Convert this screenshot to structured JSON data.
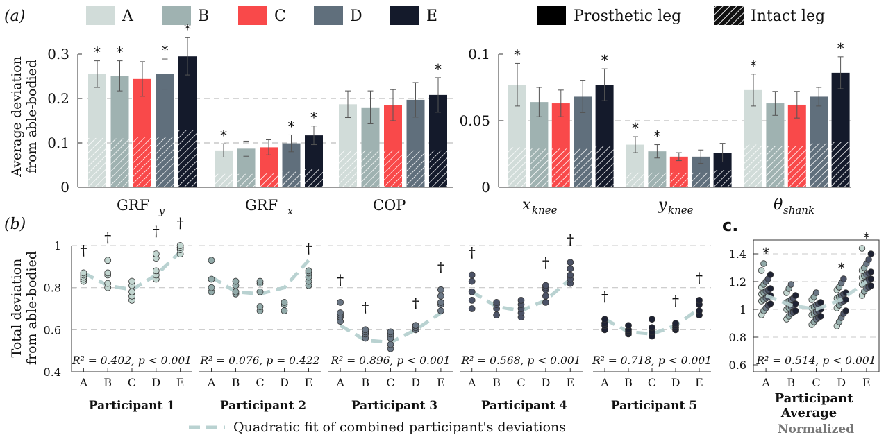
{
  "panel_labels": {
    "a": "(a)",
    "b": "(b)",
    "c": "c."
  },
  "legend": {
    "conditions": [
      {
        "label": "A",
        "color": "#d1dcd9"
      },
      {
        "label": "B",
        "color": "#9fb2b1"
      },
      {
        "label": "C",
        "color": "#f9494a"
      },
      {
        "label": "D",
        "color": "#606f7c"
      },
      {
        "label": "E",
        "color": "#141a2b"
      }
    ],
    "prosthetic_label": "Prosthetic leg",
    "intact_label": "Intact leg"
  },
  "bottom_legend": {
    "label": "Quadratic fit of combined participant's deviations",
    "color": "#b9d2d1"
  },
  "participants": [
    "Participant 1",
    "Participant 2",
    "Participant 3",
    "Participant 4",
    "Participant 5"
  ],
  "participant_average": {
    "line1": "Participant",
    "line2": "Average",
    "normalized": "Normalized"
  },
  "star": "*",
  "dagger": "†",
  "chart_data": [
    {
      "type": "bar",
      "panel": "a-left",
      "ylabel": [
        "Average deviation",
        "from able-bodied"
      ],
      "ylim": [
        0,
        0.3
      ],
      "yticks": [
        "0",
        "0.1",
        "0.2",
        "0.3"
      ],
      "gridlines": [
        0.1,
        0.2
      ],
      "groups": [
        "GRF",
        "GRF",
        "COP"
      ],
      "group_subscripts": [
        "y",
        "x",
        ""
      ],
      "series_names": [
        "A",
        "B",
        "C",
        "D",
        "E"
      ],
      "stacked_parts": [
        "Intact leg",
        "Prosthetic leg"
      ],
      "totals": [
        [
          0.255,
          0.251,
          0.244,
          0.255,
          0.295
        ],
        [
          0.083,
          0.087,
          0.09,
          0.099,
          0.117
        ],
        [
          0.187,
          0.18,
          0.185,
          0.197,
          0.208
        ]
      ],
      "errors": [
        [
          0.03,
          0.034,
          0.039,
          0.034,
          0.042
        ],
        [
          0.015,
          0.017,
          0.017,
          0.019,
          0.021
        ],
        [
          0.03,
          0.037,
          0.035,
          0.039,
          0.039
        ]
      ],
      "intact": [
        [
          0.111,
          0.11,
          0.113,
          0.113,
          0.128
        ],
        [
          0.03,
          0.03,
          0.031,
          0.035,
          0.042
        ],
        [
          0.083,
          0.083,
          0.083,
          0.083,
          0.083
        ]
      ],
      "significant": [
        [
          true,
          true,
          false,
          true,
          true
        ],
        [
          true,
          false,
          false,
          true,
          true
        ],
        [
          false,
          false,
          false,
          false,
          true
        ]
      ]
    },
    {
      "type": "bar",
      "panel": "a-right",
      "ylim": [
        0,
        0.1
      ],
      "yticks": [
        "0",
        "0.05",
        "0.1"
      ],
      "gridlines": [
        0.05
      ],
      "groups": [
        "x",
        "y",
        "θ"
      ],
      "group_subscripts": [
        "knee",
        "knee",
        "shank"
      ],
      "series_names": [
        "A",
        "B",
        "C",
        "D",
        "E"
      ],
      "stacked_parts": [
        "Intact leg",
        "Prosthetic leg"
      ],
      "totals": [
        [
          0.077,
          0.064,
          0.063,
          0.068,
          0.077
        ],
        [
          0.032,
          0.027,
          0.023,
          0.023,
          0.026
        ],
        [
          0.073,
          0.063,
          0.062,
          0.068,
          0.086
        ]
      ],
      "errors": [
        [
          0.016,
          0.011,
          0.01,
          0.012,
          0.012
        ],
        [
          0.006,
          0.005,
          0.003,
          0.005,
          0.007
        ],
        [
          0.012,
          0.009,
          0.01,
          0.007,
          0.012
        ]
      ],
      "intact": [
        [
          0.03,
          0.029,
          0.029,
          0.029,
          0.031
        ],
        [
          0.011,
          0.011,
          0.011,
          0.011,
          0.013
        ],
        [
          0.032,
          0.031,
          0.031,
          0.033,
          0.034
        ]
      ],
      "significant": [
        [
          true,
          false,
          false,
          false,
          true
        ],
        [
          true,
          true,
          false,
          false,
          false
        ],
        [
          true,
          false,
          false,
          false,
          true
        ]
      ]
    },
    {
      "type": "scatter",
      "panel": "b",
      "ylabel": [
        "Total deviation",
        "from able-bodied"
      ],
      "ylim": [
        0.4,
        1.0
      ],
      "yticks": [
        "0.4",
        "0.6",
        "0.8",
        "1"
      ],
      "gridlines": [
        0.6,
        0.8,
        1.0
      ],
      "categories": [
        "A",
        "B",
        "C",
        "D",
        "E"
      ],
      "participants": [
        {
          "points": [
            [
              0.83,
              0.84,
              0.85,
              0.86,
              0.87
            ],
            [
              0.8,
              0.82,
              0.86,
              0.87,
              0.93
            ],
            [
              0.74,
              0.76,
              0.78,
              0.81,
              0.83
            ],
            [
              0.84,
              0.86,
              0.88,
              0.94,
              0.96
            ],
            [
              0.96,
              0.98,
              0.99,
              0.99,
              1.0
            ]
          ],
          "fit": [
            0.87,
            0.81,
            0.79,
            0.86,
            0.97
          ],
          "fill": "#c2d6d0",
          "daggers": [
            true,
            true,
            false,
            true,
            true
          ],
          "stats": "R² = 0.402,  p < 0.001"
        },
        {
          "points": [
            [
              0.78,
              0.8,
              0.84,
              0.93
            ],
            [
              0.77,
              0.78,
              0.81,
              0.83
            ],
            [
              0.69,
              0.71,
              0.78,
              0.82,
              0.83
            ],
            [
              0.69,
              0.72,
              0.73
            ],
            [
              0.81,
              0.83,
              0.85,
              0.87,
              0.88
            ]
          ],
          "fit": [
            0.85,
            0.78,
            0.77,
            0.8,
            0.93
          ],
          "fill": "#92aaa9",
          "daggers": [
            false,
            false,
            false,
            false,
            true
          ],
          "stats": "R² = 0.076,  p = 0.422"
        },
        {
          "points": [
            [
              0.64,
              0.66,
              0.67,
              0.68,
              0.73
            ],
            [
              0.56,
              0.58,
              0.59,
              0.6
            ],
            [
              0.51,
              0.53,
              0.56,
              0.58,
              0.59
            ],
            [
              0.6,
              0.61,
              0.62,
              0.62
            ],
            [
              0.69,
              0.72,
              0.73,
              0.76,
              0.79
            ]
          ],
          "fit": [
            0.62,
            0.55,
            0.54,
            0.6,
            0.68
          ],
          "fill": "#6a7684",
          "daggers": [
            true,
            true,
            false,
            true,
            true
          ],
          "stats": "R² = 0.896,  p < 0.001"
        },
        {
          "points": [
            [
              0.7,
              0.74,
              0.78,
              0.83,
              0.86
            ],
            [
              0.67,
              0.7,
              0.72,
              0.73
            ],
            [
              0.66,
              0.68,
              0.7,
              0.72,
              0.74
            ],
            [
              0.73,
              0.76,
              0.79,
              0.8,
              0.81
            ],
            [
              0.82,
              0.84,
              0.86,
              0.89,
              0.92
            ]
          ],
          "fit": [
            0.78,
            0.71,
            0.69,
            0.74,
            0.84
          ],
          "fill": "#4b5266",
          "daggers": [
            true,
            false,
            false,
            true,
            true
          ],
          "stats": "R² = 0.568,  p < 0.001"
        },
        {
          "points": [
            [
              0.6,
              0.62,
              0.63,
              0.65
            ],
            [
              0.58,
              0.59,
              0.6,
              0.62
            ],
            [
              0.57,
              0.59,
              0.61,
              0.65
            ],
            [
              0.6,
              0.61,
              0.62,
              0.63
            ],
            [
              0.67,
              0.69,
              0.72,
              0.74
            ]
          ],
          "fit": [
            0.65,
            0.59,
            0.58,
            0.62,
            0.7
          ],
          "fill": "#1e2233",
          "daggers": [
            true,
            false,
            false,
            true,
            true
          ],
          "stats": "R² = 0.718,  p < 0.001"
        }
      ]
    },
    {
      "type": "scatter",
      "panel": "c",
      "ylim": [
        0.55,
        1.5
      ],
      "yticks": [
        "0.6",
        "0.8",
        "1",
        "1.2",
        "1.4"
      ],
      "gridlines": [
        0.8,
        1.0,
        1.2,
        1.4
      ],
      "categories": [
        "A",
        "B",
        "C",
        "D",
        "E"
      ],
      "fit": [
        1.1,
        1.03,
        1.0,
        1.07,
        1.2
      ],
      "significant": [
        true,
        false,
        false,
        true,
        true
      ],
      "stats": "R² = 0.514,  p < 0.001",
      "points": [
        [
          0.96,
          0.99,
          1.01,
          1.03,
          1.04,
          1.06,
          1.07,
          1.08,
          1.09,
          1.1,
          1.11,
          1.12,
          1.13,
          1.14,
          1.15,
          1.16,
          1.18,
          1.2,
          1.22,
          1.25,
          1.28,
          1.33
        ],
        [
          0.93,
          0.95,
          0.97,
          0.98,
          0.99,
          1.0,
          1.01,
          1.02,
          1.03,
          1.04,
          1.05,
          1.06,
          1.07,
          1.08,
          1.1,
          1.12,
          1.15,
          1.18
        ],
        [
          0.89,
          0.91,
          0.93,
          0.94,
          0.95,
          0.96,
          0.97,
          0.98,
          0.99,
          1.0,
          1.01,
          1.02,
          1.03,
          1.04,
          1.05,
          1.07,
          1.09,
          1.12
        ],
        [
          0.88,
          0.91,
          0.94,
          0.97,
          0.99,
          1.01,
          1.03,
          1.05,
          1.06,
          1.07,
          1.08,
          1.09,
          1.1,
          1.11,
          1.12,
          1.14,
          1.16,
          1.19,
          1.22
        ],
        [
          1.1,
          1.13,
          1.15,
          1.16,
          1.17,
          1.18,
          1.19,
          1.2,
          1.21,
          1.22,
          1.23,
          1.24,
          1.25,
          1.26,
          1.27,
          1.28,
          1.3,
          1.33,
          1.36,
          1.4,
          1.44
        ]
      ]
    }
  ]
}
